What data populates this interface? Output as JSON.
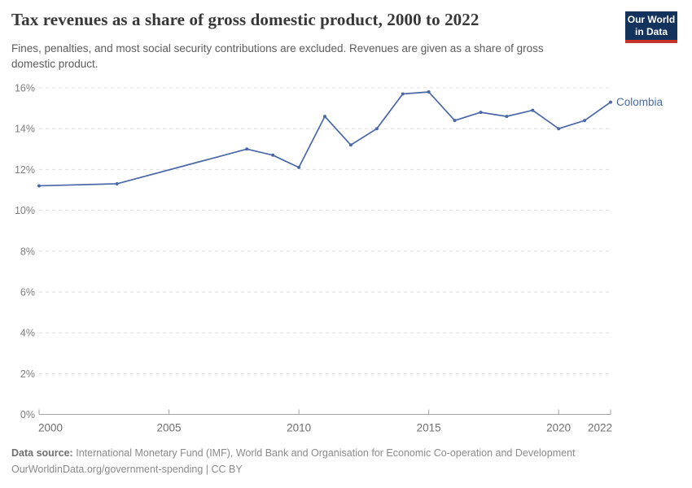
{
  "header": {
    "title": "Tax revenues as a share of gross domestic product, 2000 to 2022",
    "subtitle_lines": [
      "Fines, penalties, and most social security contributions are excluded. Revenues are given as a share of gross",
      "domestic product."
    ],
    "logo": {
      "line1": "Our World",
      "line2": "in Data"
    }
  },
  "chart_data": {
    "type": "line",
    "title": "Tax revenues as a share of gross domestic product, 2000 to 2022",
    "xlabel": "",
    "ylabel": "",
    "xlim": [
      2000,
      2022
    ],
    "ylim": [
      0,
      16
    ],
    "grid": "horizontal-dashed",
    "legend_position": "end-of-line-label",
    "y_ticks": [
      "0%",
      "2%",
      "4%",
      "6%",
      "8%",
      "10%",
      "12%",
      "14%",
      "16%"
    ],
    "x_ticks": [
      2000,
      2005,
      2010,
      2015,
      2020,
      2022
    ],
    "series": [
      {
        "name": "Colombia",
        "color": "#4a68a8",
        "points": [
          {
            "year": 2000,
            "value": 11.2
          },
          {
            "year": 2003,
            "value": 11.3
          },
          {
            "year": 2008,
            "value": 13.0
          },
          {
            "year": 2009,
            "value": 12.7
          },
          {
            "year": 2010,
            "value": 12.1
          },
          {
            "year": 2011,
            "value": 14.6
          },
          {
            "year": 2012,
            "value": 13.2
          },
          {
            "year": 2013,
            "value": 14.0
          },
          {
            "year": 2014,
            "value": 15.7
          },
          {
            "year": 2015,
            "value": 15.8
          },
          {
            "year": 2016,
            "value": 14.4
          },
          {
            "year": 2017,
            "value": 14.8
          },
          {
            "year": 2018,
            "value": 14.6
          },
          {
            "year": 2019,
            "value": 14.9
          },
          {
            "year": 2020,
            "value": 14.0
          },
          {
            "year": 2021,
            "value": 14.4
          },
          {
            "year": 2022,
            "value": 15.3
          }
        ]
      }
    ]
  },
  "footer": {
    "source_label": "Data source:",
    "source_text": "International Monetary Fund (IMF), World Bank and Organisation for Economic Co-operation and Development",
    "attribution": "OurWorldinData.org/government-spending | CC BY"
  }
}
